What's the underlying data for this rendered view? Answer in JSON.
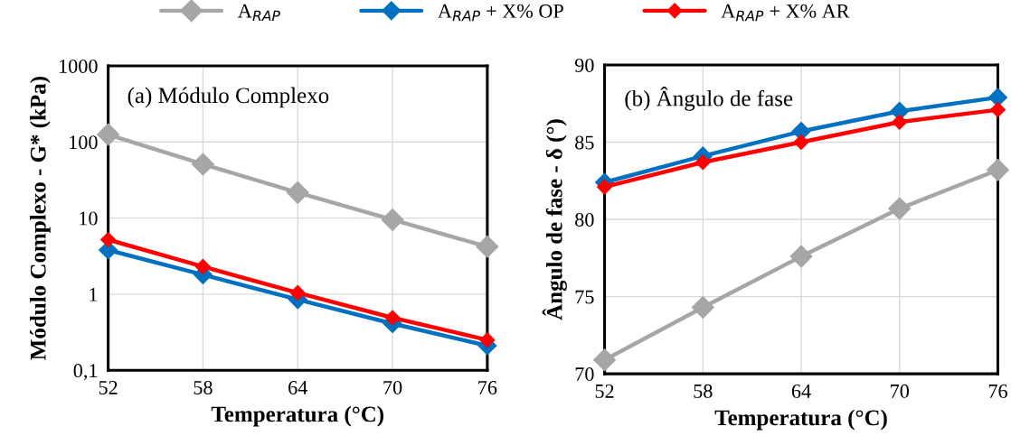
{
  "chart_data": [
    {
      "type": "line",
      "xlabel": "Temperatura (°C)",
      "ylabel": "Módulo Complexo - G* (kPa)",
      "annotations": [
        "(a) Módulo Complexo"
      ],
      "x": [
        52,
        58,
        64,
        70,
        76
      ],
      "xlim": [
        52,
        76
      ],
      "xticks": [
        52,
        58,
        64,
        70,
        76
      ],
      "log": "y",
      "ylim": [
        0.1,
        1000
      ],
      "yticks": [
        {
          "value": 0.1,
          "label": "0,1"
        },
        1,
        10,
        100,
        1000
      ],
      "grid": true,
      "legend": "top",
      "marker": "diamond",
      "line_style": "solid",
      "series": [
        {
          "name": "A$_{RAP}$",
          "color": "#a6a6a6",
          "values": [
            125,
            51,
            21.6,
            9.5,
            4.2
          ]
        },
        {
          "name": "A$_{RAP}$ + X% OP",
          "color": "#0070c0",
          "values": [
            3.8,
            1.8,
            0.85,
            0.41,
            0.21
          ]
        },
        {
          "name": "A$_{RAP}$ + X% AR",
          "color": "#ff0000",
          "values": [
            5.2,
            2.3,
            1.04,
            0.49,
            0.25
          ]
        }
      ]
    },
    {
      "type": "line",
      "xlabel": "Temperatura (°C)",
      "ylabel": "Ângulo de fase - δ (°)",
      "annotations": [
        "(b) Ângulo de fase"
      ],
      "x": [
        52,
        58,
        64,
        70,
        76
      ],
      "xlim": [
        52,
        76
      ],
      "xticks": [
        52,
        58,
        64,
        70,
        76
      ],
      "ylim": [
        70,
        90
      ],
      "yticks": [
        70,
        75,
        80,
        85,
        90
      ],
      "grid": true,
      "marker": "diamond",
      "line_style": "solid",
      "series": [
        {
          "color": "#a6a6a6",
          "values": [
            70.9,
            74.3,
            77.6,
            80.7,
            83.2
          ]
        },
        {
          "color": "#0070c0",
          "values": [
            82.4,
            84.1,
            85.7,
            87.0,
            87.9
          ]
        },
        {
          "color": "#ff0000",
          "values": [
            82.1,
            83.7,
            85.0,
            86.3,
            87.1
          ]
        }
      ]
    }
  ]
}
